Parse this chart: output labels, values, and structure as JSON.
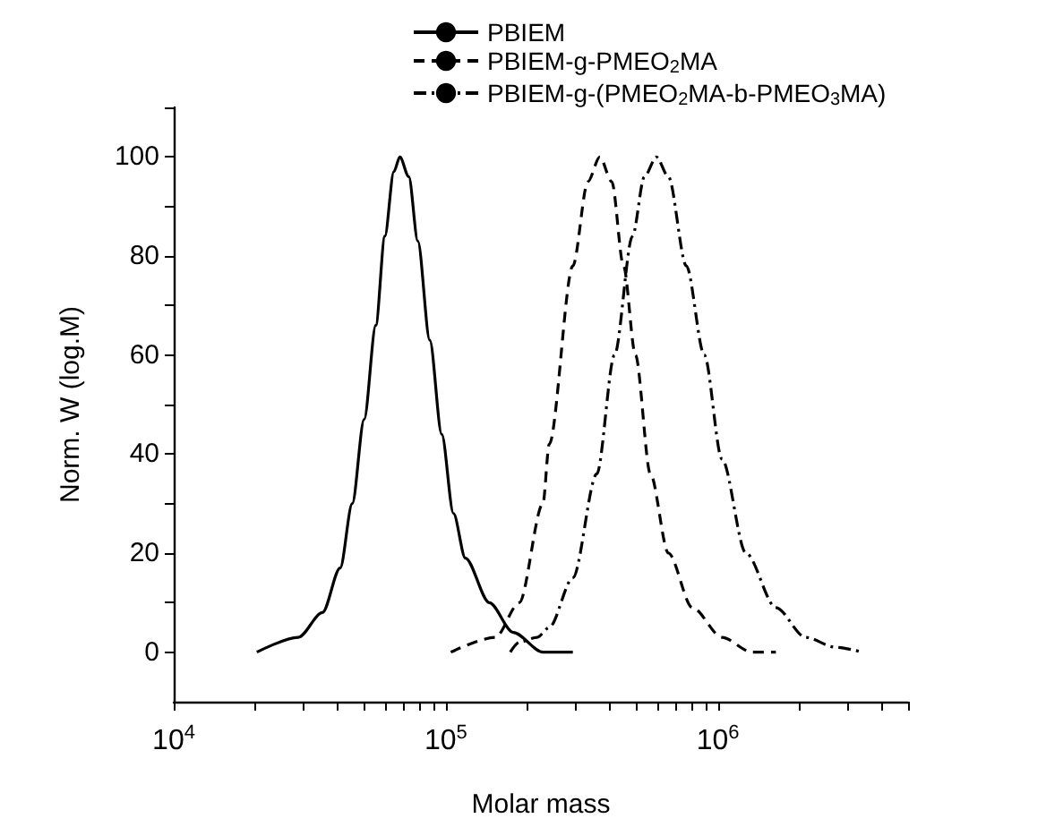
{
  "chart_data": {
    "type": "line",
    "xlabel": "Molar mass",
    "ylabel": "Norm. W (log.M)",
    "log": "x",
    "grid": false,
    "legend": "top",
    "marker": "none",
    "xlim": [
      10000,
      5000000
    ],
    "xticks": [
      {
        "value": 10000,
        "label": "10$^{4}$"
      },
      {
        "value": 20000,
        "label": null
      },
      {
        "value": 30000,
        "label": null
      },
      {
        "value": 40000,
        "label": null
      },
      {
        "value": 50000,
        "label": null
      },
      {
        "value": 60000,
        "label": null
      },
      {
        "value": 70000,
        "label": null
      },
      {
        "value": 80000,
        "label": null
      },
      {
        "value": 90000,
        "label": null
      },
      {
        "value": 100000,
        "label": "10$^{5}$"
      },
      {
        "value": 200000,
        "label": null
      },
      {
        "value": 300000,
        "label": null
      },
      {
        "value": 400000,
        "label": null
      },
      {
        "value": 500000,
        "label": null
      },
      {
        "value": 600000,
        "label": null
      },
      {
        "value": 700000,
        "label": null
      },
      {
        "value": 800000,
        "label": null
      },
      {
        "value": 900000,
        "label": null
      },
      {
        "value": 1000000,
        "label": "10$^{6}$"
      },
      {
        "value": 2000000,
        "label": null
      },
      {
        "value": 3000000,
        "label": null
      },
      {
        "value": 4000000,
        "label": null
      },
      {
        "value": 5000000,
        "label": null
      }
    ],
    "ylim": [
      -10,
      110
    ],
    "yticks": [
      0,
      {
        "value": 10,
        "label": null
      },
      20,
      {
        "value": 30,
        "label": null
      },
      40,
      {
        "value": 50,
        "label": null
      },
      60,
      {
        "value": 70,
        "label": null
      },
      80,
      {
        "value": 90,
        "label": null
      },
      100,
      {
        "value": 110,
        "label": null
      }
    ],
    "series": [
      {
        "name": "PBIEM",
        "color": "#000000",
        "line_style": "solid",
        "x": [
          20200,
          28700,
          35200,
          40900,
          45300,
          50100,
          55300,
          59700,
          64400,
          67800,
          73100,
          78900,
          87300,
          96600,
          106700,
          118000,
          144500,
          177000,
          227500,
          293000
        ],
        "values": [
          0,
          3,
          8,
          17,
          30,
          47,
          66,
          84,
          97,
          100,
          96,
          83,
          63,
          44,
          28,
          19,
          10,
          4,
          0,
          0
        ]
      },
      {
        "name": "PBIEM-g-PMEO$_{2}$MA",
        "color": "#000000",
        "line_style": "dashed",
        "x": [
          104300,
          152100,
          186200,
          227500,
          239900,
          293100,
          332700,
          368100,
          407400,
          449800,
          497700,
          564900,
          657700,
          805400,
          1035000,
          1334000,
          1633000
        ],
        "values": [
          0,
          3,
          10,
          30,
          42,
          78,
          95,
          100,
          95,
          78,
          60,
          36,
          20,
          9,
          3,
          0,
          0
        ]
      },
      {
        "name": "PBIEM-g-(PMEO$_{2}$MA-b-PMEO$_{3}$MA)",
        "color": "#000000",
        "line_style": "dashdot",
        "x": [
          172600,
          186200,
          216800,
          239900,
          293100,
          358900,
          416900,
          485300,
          537000,
          594300,
          657700,
          765600,
          891300,
          1035000,
          1268000,
          1633000,
          2099000,
          2704000,
          3396000
        ],
        "values": [
          0,
          2,
          3,
          5,
          15,
          36,
          60,
          84,
          96,
          100,
          96,
          78,
          60,
          39,
          20,
          9,
          3,
          1,
          0
        ]
      }
    ]
  }
}
